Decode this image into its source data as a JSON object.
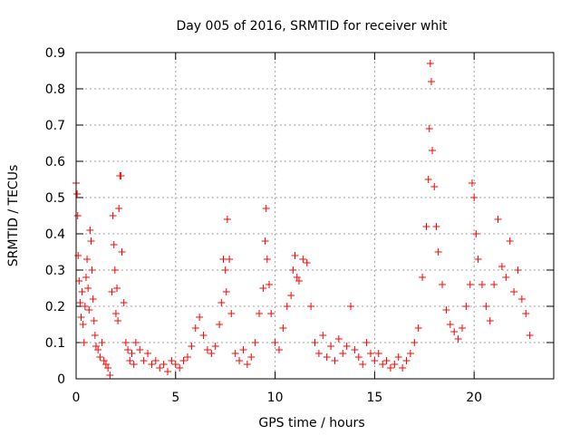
{
  "chart_data": {
    "type": "scatter",
    "title": "Day 005 of 2016, SRMTID for receiver whit",
    "xlabel": "GPS time / hours",
    "ylabel": "SRMTID / TECUs",
    "xlim": [
      0,
      24
    ],
    "ylim": [
      0,
      0.9
    ],
    "xticks": [
      0,
      5,
      10,
      15,
      20
    ],
    "yticks": [
      0,
      0.1,
      0.2,
      0.3,
      0.4,
      0.5,
      0.6,
      0.7,
      0.8,
      0.9
    ],
    "xtick_labels": [
      "0",
      "5",
      "10",
      "15",
      "20"
    ],
    "ytick_labels": [
      "0",
      "0.1",
      "0.2",
      "0.3",
      "0.4",
      "0.5",
      "0.6",
      "0.7",
      "0.8",
      "0.9"
    ],
    "grid": true,
    "marker": "+",
    "color": "#ff0000",
    "series": [
      {
        "name": "SRMTID",
        "x": [
          0.0,
          0.05,
          0.08,
          0.1,
          0.15,
          0.2,
          0.25,
          0.3,
          0.35,
          0.4,
          0.45,
          0.5,
          0.55,
          0.6,
          0.65,
          0.7,
          0.75,
          0.8,
          0.85,
          0.9,
          0.95,
          1.0,
          1.1,
          1.2,
          1.3,
          1.4,
          1.5,
          1.6,
          1.7,
          1.8,
          1.85,
          1.9,
          1.95,
          2.0,
          2.05,
          2.1,
          2.15,
          2.2,
          2.25,
          2.3,
          2.4,
          2.5,
          2.6,
          2.7,
          2.8,
          2.9,
          3.0,
          3.2,
          3.4,
          3.6,
          3.8,
          4.0,
          4.2,
          4.4,
          4.6,
          4.8,
          5.0,
          5.2,
          5.4,
          5.6,
          5.8,
          6.0,
          6.2,
          6.4,
          6.6,
          6.8,
          7.0,
          7.2,
          7.3,
          7.4,
          7.5,
          7.55,
          7.6,
          7.7,
          7.8,
          8.0,
          8.2,
          8.4,
          8.6,
          8.8,
          9.0,
          9.2,
          9.4,
          9.5,
          9.55,
          9.6,
          9.7,
          9.8,
          10.0,
          10.2,
          10.4,
          10.6,
          10.8,
          10.9,
          11.0,
          11.1,
          11.2,
          11.4,
          11.6,
          11.8,
          12.0,
          12.2,
          12.4,
          12.6,
          12.8,
          13.0,
          13.2,
          13.4,
          13.6,
          13.8,
          14.0,
          14.2,
          14.4,
          14.6,
          14.8,
          15.0,
          15.2,
          15.4,
          15.6,
          15.8,
          16.0,
          16.2,
          16.4,
          16.6,
          16.8,
          17.0,
          17.2,
          17.4,
          17.6,
          17.7,
          17.75,
          17.8,
          17.85,
          17.9,
          18.0,
          18.1,
          18.2,
          18.4,
          18.6,
          18.8,
          19.0,
          19.2,
          19.4,
          19.6,
          19.8,
          19.9,
          20.0,
          20.1,
          20.2,
          20.4,
          20.6,
          20.8,
          21.0,
          21.2,
          21.4,
          21.6,
          21.8,
          22.0,
          22.2,
          22.4,
          22.6,
          22.8
        ],
        "y": [
          0.54,
          0.51,
          0.45,
          0.34,
          0.27,
          0.21,
          0.17,
          0.24,
          0.15,
          0.1,
          0.2,
          0.28,
          0.33,
          0.25,
          0.19,
          0.41,
          0.38,
          0.3,
          0.22,
          0.16,
          0.12,
          0.09,
          0.08,
          0.06,
          0.1,
          0.05,
          0.04,
          0.03,
          0.01,
          0.24,
          0.45,
          0.37,
          0.3,
          0.18,
          0.25,
          0.16,
          0.47,
          0.56,
          0.56,
          0.35,
          0.21,
          0.1,
          0.08,
          0.05,
          0.07,
          0.04,
          0.1,
          0.08,
          0.05,
          0.07,
          0.04,
          0.05,
          0.03,
          0.04,
          0.02,
          0.05,
          0.04,
          0.03,
          0.05,
          0.06,
          0.09,
          0.14,
          0.17,
          0.12,
          0.08,
          0.07,
          0.09,
          0.15,
          0.21,
          0.33,
          0.3,
          0.24,
          0.44,
          0.33,
          0.18,
          0.07,
          0.05,
          0.08,
          0.04,
          0.06,
          0.1,
          0.18,
          0.25,
          0.38,
          0.47,
          0.33,
          0.26,
          0.18,
          0.1,
          0.08,
          0.14,
          0.2,
          0.23,
          0.3,
          0.34,
          0.28,
          0.27,
          0.33,
          0.32,
          0.2,
          0.1,
          0.07,
          0.12,
          0.06,
          0.09,
          0.05,
          0.11,
          0.07,
          0.09,
          0.2,
          0.08,
          0.06,
          0.04,
          0.1,
          0.07,
          0.05,
          0.07,
          0.04,
          0.05,
          0.03,
          0.04,
          0.06,
          0.03,
          0.05,
          0.07,
          0.1,
          0.14,
          0.28,
          0.42,
          0.55,
          0.69,
          0.87,
          0.82,
          0.63,
          0.53,
          0.42,
          0.35,
          0.26,
          0.19,
          0.15,
          0.13,
          0.11,
          0.14,
          0.2,
          0.26,
          0.54,
          0.5,
          0.4,
          0.33,
          0.26,
          0.2,
          0.16,
          0.26,
          0.44,
          0.31,
          0.28,
          0.38,
          0.24,
          0.3,
          0.22,
          0.18,
          0.12
        ]
      }
    ]
  }
}
